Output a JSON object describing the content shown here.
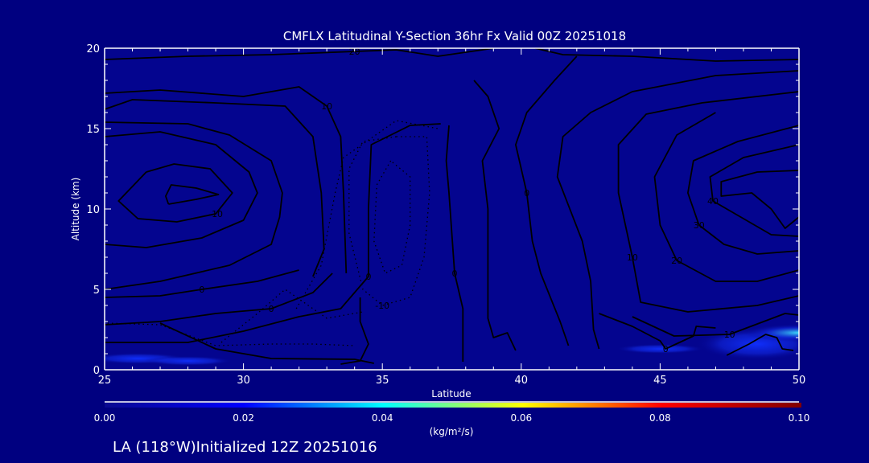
{
  "chart_data": {
    "type": "contour",
    "title": "CMFLX Latitudinal Y-Section 36hr  Fx Valid 00Z 20251018",
    "xlabel": "Latitude",
    "ylabel": "Altitude (km)",
    "xlim": [
      25,
      50
    ],
    "ylim": [
      0,
      20
    ],
    "xticks": [
      "25",
      "30",
      "35",
      "40",
      "45",
      "50"
    ],
    "yticks": [
      "0",
      "5",
      "10",
      "15",
      "20"
    ],
    "colorbar": {
      "range": [
        0.0,
        0.1
      ],
      "ticks": [
        "0.00",
        "0.02",
        "0.04",
        "0.06",
        "0.08",
        "0.10"
      ],
      "units": "(kg/m²/s)",
      "colors": [
        "#0a0a90",
        "#0000ff",
        "#00ffff",
        "#ffff00",
        "#ff0000",
        "#800000"
      ]
    },
    "footer": "LA (118°W)Initialized 12Z 20251016",
    "shading": [
      {
        "lat": 26.2,
        "alt": 0.7,
        "rlat": 1.8,
        "ralt": 0.35,
        "value": 0.018
      },
      {
        "lat": 28.0,
        "alt": 0.55,
        "rlat": 1.6,
        "ralt": 0.3,
        "value": 0.012
      },
      {
        "lat": 48.5,
        "alt": 1.6,
        "rlat": 2.2,
        "ralt": 1.0,
        "value": 0.02
      },
      {
        "lat": 50.0,
        "alt": 2.3,
        "rlat": 2.0,
        "ralt": 0.55,
        "value": 0.04
      },
      {
        "lat": 45.0,
        "alt": 1.3,
        "rlat": 1.6,
        "ralt": 0.3,
        "value": 0.01
      }
    ],
    "contours": [
      {
        "style": "solid",
        "label": "20",
        "pts": [
          [
            25,
            19.3
          ],
          [
            28,
            19.5
          ],
          [
            31,
            19.6
          ],
          [
            34,
            19.8
          ],
          [
            35.5,
            19.9
          ],
          [
            37,
            19.5
          ],
          [
            39,
            20
          ]
        ]
      },
      {
        "style": "solid",
        "label": "",
        "pts": [
          [
            40.5,
            20
          ],
          [
            41.5,
            19.6
          ],
          [
            44,
            19.5
          ],
          [
            47,
            19.2
          ],
          [
            50,
            19.3
          ]
        ]
      },
      {
        "style": "solid",
        "label": "10",
        "pts": [
          [
            25,
            17.2
          ],
          [
            27,
            17.4
          ],
          [
            30,
            17.0
          ],
          [
            32,
            17.6
          ],
          [
            33,
            16.4
          ],
          [
            33.5,
            14.5
          ],
          [
            33.6,
            11
          ],
          [
            33.7,
            6
          ]
        ]
      },
      {
        "style": "solid",
        "label": "",
        "pts": [
          [
            25,
            16.2
          ],
          [
            26,
            16.8
          ],
          [
            29,
            16.6
          ],
          [
            31.5,
            16.4
          ],
          [
            32.5,
            14.5
          ],
          [
            32.8,
            11
          ],
          [
            32.9,
            7.5
          ],
          [
            32.5,
            5.8
          ]
        ]
      },
      {
        "style": "solid",
        "label": "",
        "pts": [
          [
            25,
            15.4
          ],
          [
            28,
            15.3
          ],
          [
            29.5,
            14.6
          ],
          [
            31,
            13
          ],
          [
            31.4,
            11
          ],
          [
            31.3,
            9.5
          ],
          [
            31,
            7.8
          ],
          [
            29.5,
            6.5
          ],
          [
            27,
            5.5
          ],
          [
            25,
            5.0
          ]
        ]
      },
      {
        "style": "solid",
        "label": "",
        "pts": [
          [
            25,
            14.5
          ],
          [
            27,
            14.8
          ],
          [
            29,
            14
          ],
          [
            30.2,
            12.3
          ],
          [
            30.5,
            11
          ],
          [
            30,
            9.3
          ],
          [
            28.5,
            8.2
          ],
          [
            26.5,
            7.6
          ],
          [
            25,
            7.8
          ]
        ]
      },
      {
        "style": "solid",
        "label": "-10",
        "pts": [
          [
            26.5,
            12.3
          ],
          [
            27.5,
            12.8
          ],
          [
            28.8,
            12.5
          ],
          [
            29.6,
            11
          ],
          [
            29,
            9.7
          ],
          [
            27.6,
            9.2
          ],
          [
            26.2,
            9.4
          ],
          [
            25.5,
            10.5
          ],
          [
            26.5,
            12.3
          ]
        ]
      },
      {
        "style": "solid",
        "label": "",
        "pts": [
          [
            27.3,
            10.3
          ],
          [
            28.3,
            10.6
          ],
          [
            29.1,
            10.9
          ],
          [
            28.3,
            11.3
          ],
          [
            27.4,
            11.5
          ],
          [
            27.2,
            10.8
          ],
          [
            27.3,
            10.3
          ]
        ]
      },
      {
        "style": "solid",
        "label": "0",
        "pts": [
          [
            25,
            2.8
          ],
          [
            27,
            3.0
          ],
          [
            29,
            3.5
          ],
          [
            31,
            3.8
          ],
          [
            32.5,
            4.8
          ],
          [
            33.2,
            6
          ]
        ]
      },
      {
        "style": "solid",
        "label": "0",
        "pts": [
          [
            25,
            4.5
          ],
          [
            27,
            4.6
          ],
          [
            28.5,
            5.0
          ],
          [
            30.5,
            5.5
          ],
          [
            32,
            6.2
          ]
        ]
      },
      {
        "style": "solid",
        "label": "0",
        "pts": [
          [
            25,
            1.7
          ],
          [
            28,
            1.7
          ],
          [
            30,
            2.4
          ],
          [
            32,
            3.3
          ],
          [
            33.5,
            3.8
          ],
          [
            34.5,
            5.8
          ],
          [
            34.5,
            10
          ],
          [
            34.6,
            14
          ],
          [
            36,
            15.2
          ],
          [
            37.1,
            15.3
          ]
        ]
      },
      {
        "style": "solid",
        "label": "",
        "pts": [
          [
            27,
            2.9
          ],
          [
            29,
            1.3
          ],
          [
            31,
            0.7
          ],
          [
            34,
            0.65
          ],
          [
            34.7,
            0.4
          ]
        ]
      },
      {
        "style": "solid",
        "label": "",
        "pts": [
          [
            33.5,
            0.35
          ],
          [
            34.2,
            0.55
          ],
          [
            34.5,
            1.6
          ],
          [
            34.2,
            3.0
          ],
          [
            34.2,
            4.5
          ]
        ]
      },
      {
        "style": "solid",
        "label": "0",
        "pts": [
          [
            37.4,
            15.2
          ],
          [
            37.3,
            13
          ],
          [
            37.4,
            11
          ],
          [
            37.6,
            6
          ],
          [
            37.9,
            3.8
          ],
          [
            37.9,
            0.5
          ]
        ]
      },
      {
        "style": "solid",
        "label": "",
        "pts": [
          [
            38.3,
            18
          ],
          [
            38.8,
            17
          ],
          [
            39.2,
            15
          ],
          [
            38.6,
            13
          ],
          [
            38.8,
            10
          ],
          [
            38.8,
            7
          ],
          [
            38.8,
            3.2
          ],
          [
            39,
            2
          ],
          [
            39.5,
            2.3
          ],
          [
            39.8,
            1.2
          ]
        ]
      },
      {
        "style": "solid",
        "label": "0",
        "pts": [
          [
            42,
            19.5
          ],
          [
            41.2,
            18
          ],
          [
            40.2,
            16
          ],
          [
            39.8,
            14
          ],
          [
            40.2,
            11
          ],
          [
            40.4,
            8
          ],
          [
            40.7,
            6
          ],
          [
            41.4,
            3
          ],
          [
            41.7,
            1.5
          ]
        ]
      },
      {
        "style": "solid",
        "label": "",
        "pts": [
          [
            50,
            18.6
          ],
          [
            47,
            18.3
          ],
          [
            44,
            17.3
          ],
          [
            42.5,
            16
          ],
          [
            41.5,
            14.5
          ],
          [
            41.3,
            12
          ],
          [
            42.2,
            8
          ],
          [
            42.5,
            5.5
          ],
          [
            42.6,
            2.5
          ],
          [
            42.8,
            1.3
          ]
        ]
      },
      {
        "style": "solid",
        "label": "10",
        "pts": [
          [
            50,
            17.3
          ],
          [
            46.5,
            16.6
          ],
          [
            44.5,
            15.9
          ],
          [
            43.5,
            14
          ],
          [
            43.5,
            11
          ],
          [
            44,
            7
          ],
          [
            44.3,
            4.2
          ],
          [
            46,
            3.6
          ],
          [
            48.5,
            4
          ],
          [
            50,
            4.6
          ]
        ]
      },
      {
        "style": "solid",
        "label": "20",
        "pts": [
          [
            47,
            16.0
          ],
          [
            45.6,
            14.6
          ],
          [
            44.8,
            12
          ],
          [
            45,
            9
          ],
          [
            45.6,
            6.8
          ],
          [
            47,
            5.5
          ],
          [
            48.5,
            5.5
          ],
          [
            50,
            6.2
          ]
        ]
      },
      {
        "style": "solid",
        "label": "30",
        "pts": [
          [
            50,
            15.2
          ],
          [
            47.8,
            14.2
          ],
          [
            46.2,
            13
          ],
          [
            46,
            11
          ],
          [
            46.4,
            9
          ],
          [
            47.3,
            7.8
          ],
          [
            48.5,
            7.2
          ],
          [
            50,
            7.4
          ]
        ]
      },
      {
        "style": "solid",
        "label": "40",
        "pts": [
          [
            50,
            14.0
          ],
          [
            48,
            13.2
          ],
          [
            46.8,
            12
          ],
          [
            46.9,
            10.5
          ],
          [
            47.6,
            9.8
          ],
          [
            49,
            8.4
          ],
          [
            50,
            8.3
          ]
        ]
      },
      {
        "style": "solid",
        "label": "",
        "pts": [
          [
            50,
            12.4
          ],
          [
            48.5,
            12.3
          ],
          [
            47.2,
            11.7
          ],
          [
            47.2,
            10.8
          ],
          [
            48.3,
            11
          ],
          [
            49,
            10
          ],
          [
            49.5,
            8.8
          ],
          [
            50,
            9.5
          ]
        ]
      },
      {
        "style": "solid",
        "label": "10",
        "pts": [
          [
            44,
            3.3
          ],
          [
            45.5,
            2.1
          ],
          [
            47.5,
            2.2
          ],
          [
            49.5,
            3.5
          ],
          [
            50,
            3.4
          ]
        ]
      },
      {
        "style": "solid",
        "label": "0",
        "pts": [
          [
            42.8,
            3.5
          ],
          [
            44,
            2.7
          ],
          [
            45,
            1.8
          ],
          [
            45.2,
            1.3
          ],
          [
            46.2,
            2.1
          ],
          [
            46.3,
            2.7
          ],
          [
            47,
            2.6
          ]
        ]
      },
      {
        "style": "solid",
        "label": "",
        "pts": [
          [
            47.4,
            0.9
          ],
          [
            48.2,
            1.6
          ],
          [
            48.8,
            2.2
          ],
          [
            49.2,
            2.0
          ],
          [
            49.4,
            1.3
          ],
          [
            49.8,
            1.2
          ]
        ]
      },
      {
        "style": "dotted",
        "label": "-10",
        "pts": [
          [
            35.5,
            14.5
          ],
          [
            34.3,
            14.2
          ],
          [
            33.8,
            12.5
          ],
          [
            33.8,
            8.5
          ],
          [
            34.3,
            5.0
          ],
          [
            35.0,
            4.0
          ],
          [
            36,
            4.5
          ],
          [
            36.5,
            7
          ],
          [
            36.7,
            11
          ],
          [
            36.6,
            14.5
          ],
          [
            35.5,
            14.5
          ]
        ]
      },
      {
        "style": "dotted",
        "label": "",
        "pts": [
          [
            35.3,
            13
          ],
          [
            34.8,
            11.5
          ],
          [
            34.7,
            8
          ],
          [
            35.1,
            6
          ],
          [
            35.7,
            6.5
          ],
          [
            36,
            9
          ],
          [
            36,
            12
          ],
          [
            35.3,
            13
          ]
        ]
      },
      {
        "style": "dotted",
        "label": "",
        "pts": [
          [
            25.1,
            2.9
          ],
          [
            27,
            2.8
          ],
          [
            29,
            1.5
          ],
          [
            31,
            1.6
          ],
          [
            32.5,
            1.6
          ],
          [
            34,
            1.5
          ]
        ]
      },
      {
        "style": "dotted",
        "label": "",
        "pts": [
          [
            31.9,
            3.8
          ],
          [
            32.8,
            6.5
          ],
          [
            33.3,
            11
          ],
          [
            33.6,
            13.2
          ],
          [
            35.5,
            15.5
          ],
          [
            37,
            15
          ]
        ]
      },
      {
        "style": "dotted",
        "label": "",
        "pts": [
          [
            29.2,
            1.7
          ],
          [
            30.5,
            3.5
          ],
          [
            31.5,
            5
          ],
          [
            33,
            3.2
          ],
          [
            34.3,
            3.6
          ]
        ]
      }
    ]
  }
}
